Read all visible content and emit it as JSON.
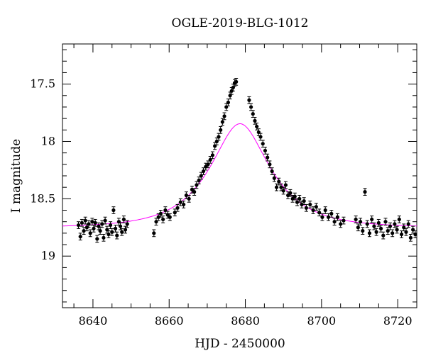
{
  "chart_data": {
    "type": "scatter",
    "title": "OGLE-2019-BLG-1012",
    "xlabel": "HJD - 2450000",
    "ylabel": "I magnitude",
    "xlim": [
      8632,
      8725
    ],
    "ylim": [
      19.45,
      17.15
    ],
    "y_inverted": true,
    "xticks": [
      8640,
      8660,
      8680,
      8700,
      8720
    ],
    "yticks": [
      17.5,
      18,
      18.5,
      19
    ],
    "ytick_labels": [
      "17.5",
      "18",
      "18.5",
      "19"
    ],
    "model": {
      "color": "#ff00ff",
      "t0": 8678.6,
      "u0": 0.47,
      "tE": 14.0,
      "baseline_mag": 18.75,
      "blend_fraction": 1.0
    },
    "series": [
      {
        "marker_color": "#000000",
        "points": [
          [
            8636.2,
            18.73
          ],
          [
            8636.7,
            18.83
          ],
          [
            8637.1,
            18.71
          ],
          [
            8637.6,
            18.78
          ],
          [
            8638.0,
            18.69
          ],
          [
            8638.4,
            18.75
          ],
          [
            8638.9,
            18.72
          ],
          [
            8639.3,
            18.8
          ],
          [
            8639.8,
            18.7
          ],
          [
            8640.2,
            18.76
          ],
          [
            8640.6,
            18.71
          ],
          [
            8641.1,
            18.85
          ],
          [
            8641.5,
            18.74
          ],
          [
            8641.9,
            18.78
          ],
          [
            8642.4,
            18.72
          ],
          [
            8642.8,
            18.84
          ],
          [
            8643.2,
            18.69
          ],
          [
            8643.7,
            18.77
          ],
          [
            8644.1,
            18.81
          ],
          [
            8644.6,
            18.73
          ],
          [
            8645.0,
            18.79
          ],
          [
            8645.4,
            18.6
          ],
          [
            8645.9,
            18.76
          ],
          [
            8646.3,
            18.82
          ],
          [
            8646.8,
            18.7
          ],
          [
            8647.2,
            18.74
          ],
          [
            8647.6,
            18.79
          ],
          [
            8648.1,
            18.68
          ],
          [
            8648.5,
            18.77
          ],
          [
            8649.0,
            18.72
          ],
          [
            8656.0,
            18.8
          ],
          [
            8656.6,
            18.7
          ],
          [
            8657.2,
            18.66
          ],
          [
            8657.8,
            18.63
          ],
          [
            8658.4,
            18.68
          ],
          [
            8659.0,
            18.6
          ],
          [
            8659.6,
            18.64
          ],
          [
            8660.2,
            18.66
          ],
          [
            8661.5,
            18.62
          ],
          [
            8662.2,
            18.58
          ],
          [
            8663.0,
            18.53
          ],
          [
            8663.8,
            18.55
          ],
          [
            8664.5,
            18.47
          ],
          [
            8665.2,
            18.5
          ],
          [
            8666.0,
            18.42
          ],
          [
            8666.6,
            18.44
          ],
          [
            8667.2,
            18.38
          ],
          [
            8667.8,
            18.34
          ],
          [
            8668.4,
            18.3
          ],
          [
            8669.0,
            18.26
          ],
          [
            8669.6,
            18.22
          ],
          [
            8670.2,
            18.2
          ],
          [
            8670.8,
            18.16
          ],
          [
            8671.4,
            18.12
          ],
          [
            8672.0,
            18.04
          ],
          [
            8672.5,
            18.0
          ],
          [
            8673.0,
            17.96
          ],
          [
            8673.5,
            17.9
          ],
          [
            8674.0,
            17.83
          ],
          [
            8674.5,
            17.78
          ],
          [
            8675.0,
            17.7
          ],
          [
            8675.5,
            17.66
          ],
          [
            8676.0,
            17.6
          ],
          [
            8676.4,
            17.56
          ],
          [
            8676.8,
            17.53
          ],
          [
            8677.2,
            17.49
          ],
          [
            8677.6,
            17.48
          ],
          [
            8681.0,
            17.64
          ],
          [
            8681.5,
            17.7
          ],
          [
            8682.0,
            17.76
          ],
          [
            8682.5,
            17.82
          ],
          [
            8683.0,
            17.87
          ],
          [
            8683.5,
            17.92
          ],
          [
            8684.0,
            17.96
          ],
          [
            8684.6,
            18.02
          ],
          [
            8685.2,
            18.08
          ],
          [
            8685.8,
            18.14
          ],
          [
            8686.4,
            18.2
          ],
          [
            8687.0,
            18.26
          ],
          [
            8687.6,
            18.32
          ],
          [
            8688.2,
            18.4
          ],
          [
            8688.8,
            18.35
          ],
          [
            8689.4,
            18.4
          ],
          [
            8690.0,
            18.43
          ],
          [
            8690.6,
            18.38
          ],
          [
            8691.2,
            18.47
          ],
          [
            8691.8,
            18.45
          ],
          [
            8692.4,
            18.5
          ],
          [
            8693.0,
            18.48
          ],
          [
            8693.6,
            18.53
          ],
          [
            8694.2,
            18.5
          ],
          [
            8694.8,
            18.55
          ],
          [
            8695.4,
            18.52
          ],
          [
            8696.0,
            18.58
          ],
          [
            8697.0,
            18.55
          ],
          [
            8697.8,
            18.6
          ],
          [
            8698.6,
            18.57
          ],
          [
            8699.4,
            18.62
          ],
          [
            8700.2,
            18.66
          ],
          [
            8701.0,
            18.6
          ],
          [
            8701.8,
            18.66
          ],
          [
            8702.6,
            18.63
          ],
          [
            8703.4,
            18.7
          ],
          [
            8704.2,
            18.66
          ],
          [
            8705.0,
            18.72
          ],
          [
            8705.8,
            18.69
          ],
          [
            8709.0,
            18.68
          ],
          [
            8709.6,
            18.75
          ],
          [
            8710.2,
            18.7
          ],
          [
            8710.8,
            18.78
          ],
          [
            8711.4,
            18.44
          ],
          [
            8712.0,
            18.72
          ],
          [
            8712.6,
            18.8
          ],
          [
            8713.2,
            18.68
          ],
          [
            8713.8,
            18.74
          ],
          [
            8714.4,
            18.79
          ],
          [
            8715.0,
            18.71
          ],
          [
            8715.6,
            18.76
          ],
          [
            8716.2,
            18.82
          ],
          [
            8716.8,
            18.7
          ],
          [
            8717.4,
            18.78
          ],
          [
            8718.0,
            18.74
          ],
          [
            8718.6,
            18.8
          ],
          [
            8719.2,
            18.72
          ],
          [
            8719.8,
            18.77
          ],
          [
            8720.4,
            18.68
          ],
          [
            8721.0,
            18.81
          ],
          [
            8721.6,
            18.75
          ],
          [
            8722.2,
            18.79
          ],
          [
            8722.8,
            18.72
          ],
          [
            8723.4,
            18.84
          ],
          [
            8724.0,
            18.77
          ],
          [
            8724.6,
            18.81
          ]
        ],
        "errors": 0.03
      }
    ]
  }
}
